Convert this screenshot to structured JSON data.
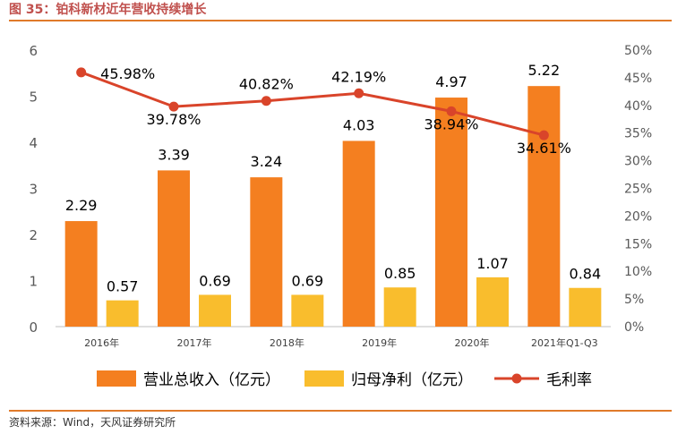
{
  "figure_title": "图 35：铂科新材近年营收持续增长",
  "source": "资料来源：Wind，天风证券研究所",
  "colors": {
    "revenue": "#f47f20",
    "net_profit": "#f9bd2d",
    "margin": "#d9442a",
    "accent_rule": "#e07a2a"
  },
  "chart_data": {
    "type": "bar",
    "categories": [
      "2016年",
      "2017年",
      "2018年",
      "2019年",
      "2020年",
      "2021年Q1-Q3"
    ],
    "series": [
      {
        "name": "营业总收入（亿元）",
        "type": "bar",
        "axis": "left",
        "values": [
          2.29,
          3.39,
          3.24,
          4.03,
          4.97,
          5.22
        ],
        "labels": [
          "2.29",
          "3.39",
          "3.24",
          "4.03",
          "4.97",
          "5.22"
        ]
      },
      {
        "name": "归母净利（亿元）",
        "type": "bar",
        "axis": "left",
        "values": [
          0.57,
          0.69,
          0.69,
          0.85,
          1.07,
          0.84
        ],
        "labels": [
          "0.57",
          "0.69",
          "0.69",
          "0.85",
          "1.07",
          "0.84"
        ]
      },
      {
        "name": "毛利率",
        "type": "line",
        "axis": "right",
        "values": [
          45.98,
          39.78,
          40.82,
          42.19,
          38.94,
          34.61
        ],
        "labels": [
          "45.98%",
          "39.78%",
          "40.82%",
          "42.19%",
          "38.94%",
          "34.61%"
        ]
      }
    ],
    "ylim": [
      0,
      6
    ],
    "y_ticks": [
      "0",
      "1",
      "2",
      "3",
      "4",
      "5",
      "6"
    ],
    "y2lim": [
      0,
      50
    ],
    "y2_ticks": [
      "0%",
      "5%",
      "10%",
      "15%",
      "20%",
      "25%",
      "30%",
      "35%",
      "40%",
      "45%",
      "50%"
    ],
    "grid": false,
    "legend_position": "bottom"
  }
}
